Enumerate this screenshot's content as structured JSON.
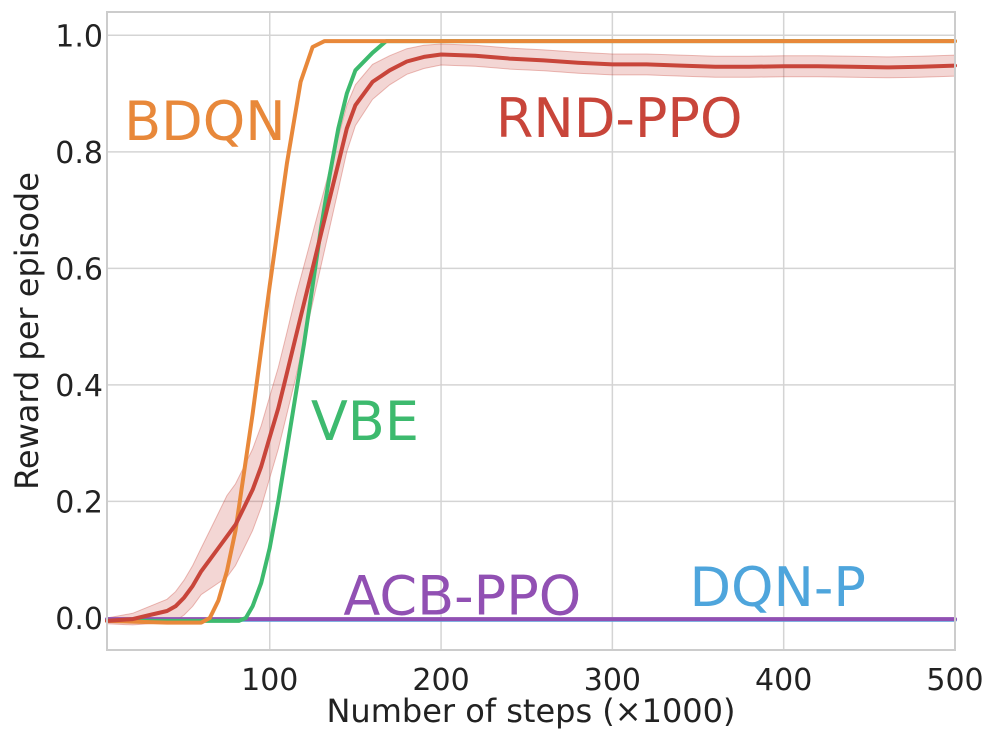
{
  "chart_data": {
    "type": "line",
    "title": "",
    "xlabel": "Number of steps (×1000)",
    "ylabel": "Reward per episode",
    "xlim": [
      5,
      500
    ],
    "ylim": [
      -0.055,
      1.04
    ],
    "xticks": [
      100,
      200,
      300,
      400,
      500
    ],
    "yticks": [
      0.0,
      0.2,
      0.4,
      0.6,
      0.8,
      1.0
    ],
    "xtick_labels": [
      "100",
      "200",
      "300",
      "400",
      "500"
    ],
    "ytick_labels": [
      "0.0",
      "0.2",
      "0.4",
      "0.6",
      "0.8",
      "1.0"
    ],
    "grid": true,
    "series": [
      {
        "name": "BDQN",
        "color": "#e8883a",
        "x": [
          5,
          40,
          60,
          65,
          70,
          75,
          80,
          90,
          100,
          110,
          118,
          125,
          132,
          140,
          150,
          200,
          300,
          400,
          500
        ],
        "y": [
          -0.005,
          -0.008,
          -0.008,
          0.0,
          0.03,
          0.08,
          0.15,
          0.35,
          0.57,
          0.78,
          0.92,
          0.98,
          0.99,
          0.99,
          0.99,
          0.99,
          0.99,
          0.99,
          0.99
        ]
      },
      {
        "name": "VBE",
        "color": "#3dba6e",
        "x": [
          5,
          50,
          82,
          86,
          90,
          95,
          100,
          105,
          110,
          115,
          120,
          125,
          130,
          135,
          140,
          145,
          150,
          160,
          168,
          175,
          200,
          300,
          400,
          500
        ],
        "y": [
          -0.005,
          -0.005,
          -0.005,
          0.0,
          0.02,
          0.06,
          0.12,
          0.2,
          0.29,
          0.38,
          0.47,
          0.57,
          0.67,
          0.76,
          0.84,
          0.9,
          0.94,
          0.97,
          0.99,
          0.99,
          0.99,
          0.99,
          0.99,
          0.99
        ]
      },
      {
        "name": "RND-PPO",
        "color": "#c8453a",
        "x": [
          5,
          20,
          30,
          40,
          45,
          50,
          55,
          60,
          65,
          70,
          75,
          80,
          85,
          90,
          95,
          100,
          105,
          110,
          115,
          120,
          125,
          130,
          135,
          140,
          145,
          150,
          160,
          170,
          180,
          190,
          200,
          220,
          240,
          260,
          280,
          300,
          320,
          340,
          360,
          380,
          400,
          420,
          440,
          460,
          480,
          500
        ],
        "y": [
          -0.005,
          -0.002,
          0.005,
          0.012,
          0.02,
          0.035,
          0.055,
          0.08,
          0.1,
          0.12,
          0.14,
          0.16,
          0.19,
          0.22,
          0.26,
          0.31,
          0.36,
          0.42,
          0.48,
          0.54,
          0.6,
          0.66,
          0.72,
          0.78,
          0.84,
          0.88,
          0.92,
          0.94,
          0.955,
          0.963,
          0.967,
          0.965,
          0.96,
          0.957,
          0.953,
          0.95,
          0.95,
          0.948,
          0.946,
          0.946,
          0.947,
          0.947,
          0.946,
          0.945,
          0.946,
          0.948
        ],
        "band": [
          0.005,
          0.01,
          0.015,
          0.02,
          0.025,
          0.03,
          0.035,
          0.04,
          0.05,
          0.06,
          0.07,
          0.07,
          0.07,
          0.07,
          0.07,
          0.07,
          0.07,
          0.07,
          0.07,
          0.065,
          0.06,
          0.055,
          0.05,
          0.045,
          0.04,
          0.035,
          0.03,
          0.025,
          0.022,
          0.02,
          0.018,
          0.018,
          0.018,
          0.018,
          0.018,
          0.018,
          0.018,
          0.018,
          0.018,
          0.018,
          0.018,
          0.018,
          0.018,
          0.018,
          0.018,
          0.018
        ]
      },
      {
        "name": "ACB-PPO",
        "color": "#9150b3",
        "x": [
          5,
          500
        ],
        "y": [
          -0.002,
          -0.002
        ]
      },
      {
        "name": "DQN-P",
        "color": "#4ea5dc",
        "x": [
          5,
          500
        ],
        "y": [
          -0.003,
          -0.003
        ]
      }
    ],
    "annotations": [
      {
        "text": "BDQN",
        "color": "#e8883a",
        "x": 15,
        "y": 0.855
      },
      {
        "text": "RND-PPO",
        "color": "#c8453a",
        "x": 232,
        "y": 0.86
      },
      {
        "text": "VBE",
        "color": "#3dba6e",
        "x": 124,
        "y": 0.34
      },
      {
        "text": "ACB-PPO",
        "color": "#9150b3",
        "x": 143,
        "y": 0.04
      },
      {
        "text": "DQN-P",
        "color": "#4ea5dc",
        "x": 345,
        "y": 0.055
      }
    ]
  }
}
